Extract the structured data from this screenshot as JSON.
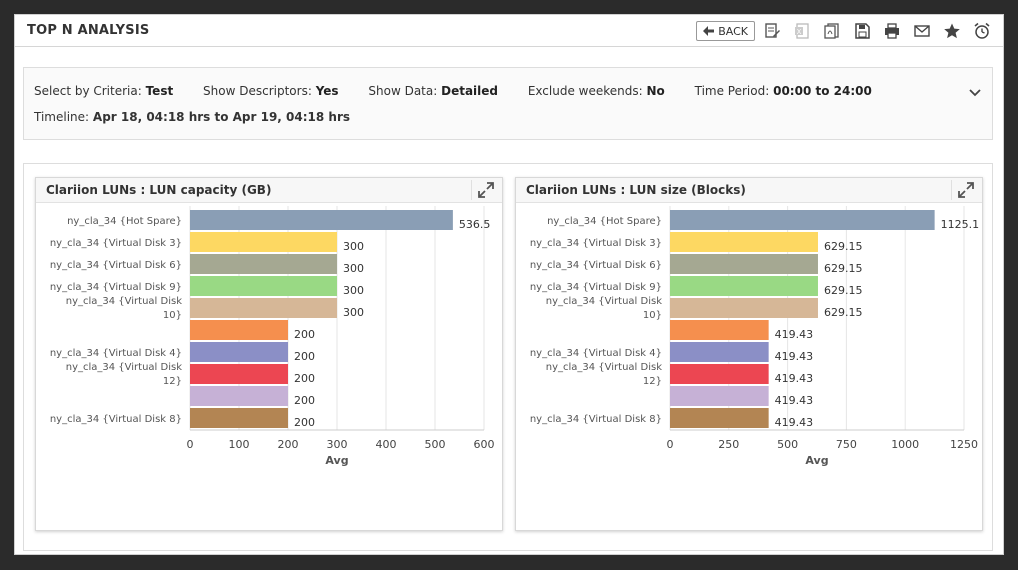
{
  "page_title": "TOP N ANALYSIS",
  "toolbar": {
    "back_label": "BACK",
    "icons": [
      "report-edit-icon",
      "excel-icon",
      "pdf-icon",
      "save-icon",
      "print-icon",
      "email-icon",
      "favorite-star-icon",
      "alarm-clock-icon"
    ]
  },
  "criteria": {
    "select_by_label": "Select by Criteria:",
    "select_by_value": "Test",
    "descriptors_label": "Show Descriptors:",
    "descriptors_value": "Yes",
    "data_label": "Show Data:",
    "data_value": "Detailed",
    "weekends_label": "Exclude weekends:",
    "weekends_value": "No",
    "period_label": "Time Period:",
    "period_value": "00:00 to 24:00",
    "timeline_label": "Timeline:",
    "timeline_value": "Apr 18, 04:18 hrs to Apr 19, 04:18 hrs"
  },
  "colors": [
    "#8a9eb5",
    "#fdd862",
    "#a5a892",
    "#99d984",
    "#d6b797",
    "#f58f4e",
    "#8b8fc6",
    "#ec4652",
    "#c6b1d6",
    "#b38553"
  ],
  "chart_data": [
    {
      "type": "bar",
      "title": "Clariion LUNs : LUN capacity (GB)",
      "orientation": "horizontal",
      "categories": [
        [
          "ny_cla_34 {Hot Spare}"
        ],
        [
          "ny_cla_34 {Virtual Disk 3}"
        ],
        [
          "ny_cla_34 {Virtual Disk 6}"
        ],
        [
          "ny_cla_34 {Virtual Disk 9}"
        ],
        [
          "ny_cla_34 {Virtual Disk",
          "10}"
        ],
        [
          ""
        ],
        [
          "ny_cla_34 {Virtual Disk 4}"
        ],
        [
          "ny_cla_34 {Virtual Disk",
          "12}"
        ],
        [
          ""
        ],
        [
          "ny_cla_34 {Virtual Disk 8}"
        ]
      ],
      "values": [
        536.5,
        300,
        300,
        300,
        300,
        200,
        200,
        200,
        200,
        200
      ],
      "value_labels": [
        "536.5",
        "300",
        "300",
        "300",
        "300",
        "200",
        "200",
        "200",
        "200",
        "200"
      ],
      "xlabel": "Avg",
      "xlim": [
        0,
        600
      ],
      "xticks": [
        0,
        100,
        200,
        300,
        400,
        500,
        600
      ],
      "grid": true
    },
    {
      "type": "bar",
      "title": "Clariion LUNs : LUN size (Blocks)",
      "orientation": "horizontal",
      "categories": [
        [
          "ny_cla_34 {Hot Spare}"
        ],
        [
          "ny_cla_34 {Virtual Disk 3}"
        ],
        [
          "ny_cla_34 {Virtual Disk 6}"
        ],
        [
          "ny_cla_34 {Virtual Disk 9}"
        ],
        [
          "ny_cla_34 {Virtual Disk",
          "10}"
        ],
        [
          ""
        ],
        [
          "ny_cla_34 {Virtual Disk 4}"
        ],
        [
          "ny_cla_34 {Virtual Disk",
          "12}"
        ],
        [
          ""
        ],
        [
          "ny_cla_34 {Virtual Disk 8}"
        ]
      ],
      "values": [
        1125.1,
        629.15,
        629.15,
        629.15,
        629.15,
        419.43,
        419.43,
        419.43,
        419.43,
        419.43
      ],
      "value_labels": [
        "1125.1",
        "629.15",
        "629.15",
        "629.15",
        "629.15",
        "419.43",
        "419.43",
        "419.43",
        "419.43",
        "419.43"
      ],
      "xlabel": "Avg",
      "xlim": [
        0,
        1250
      ],
      "xticks": [
        0,
        250,
        500,
        750,
        1000,
        1250
      ],
      "grid": true
    }
  ]
}
